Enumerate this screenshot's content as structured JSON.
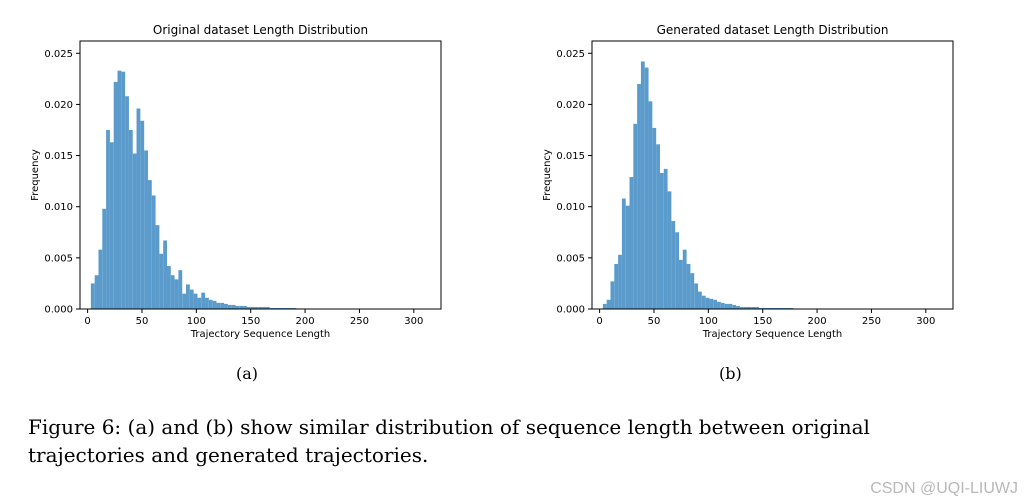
{
  "chart_data": [
    {
      "type": "bar",
      "title": "Original dataset Length Distribution",
      "xlabel": "Trajectory Sequence Length",
      "ylabel": "Frequency",
      "xlim": [
        -7,
        325
      ],
      "ylim": [
        0,
        0.0262
      ],
      "xticks": [
        "0",
        "50",
        "100",
        "150",
        "200",
        "250",
        "300"
      ],
      "yticks": [
        "0.000",
        "0.005",
        "0.010",
        "0.015",
        "0.020",
        "0.025"
      ],
      "bin_width": 3.5,
      "bin_start": 3,
      "values": [
        0.0025,
        0.0033,
        0.0058,
        0.0098,
        0.0175,
        0.0163,
        0.0222,
        0.0233,
        0.0232,
        0.0208,
        0.0175,
        0.0152,
        0.0196,
        0.0184,
        0.0155,
        0.0126,
        0.0111,
        0.0082,
        0.0054,
        0.0067,
        0.0042,
        0.0033,
        0.0029,
        0.0038,
        0.0015,
        0.0024,
        0.0019,
        0.0015,
        0.0011,
        0.0016,
        0.0011,
        0.0009,
        0.0008,
        0.0006,
        0.0006,
        0.0005,
        0.0004,
        0.0004,
        0.0003,
        0.0003,
        0.0003,
        0.0002,
        0.0002,
        0.0002,
        0.0002,
        0.0002,
        0.0002,
        0.0001,
        0.0001,
        0.0001,
        0.0001,
        0.0001,
        0.0001,
        0.0001
      ],
      "color": "#5b9bcc",
      "grid": false
    },
    {
      "type": "bar",
      "title": "Generated dataset Length Distribution",
      "xlabel": "Trajectory Sequence Length",
      "ylabel": "Frequency",
      "xlim": [
        -7,
        325
      ],
      "ylim": [
        0,
        0.0262
      ],
      "xticks": [
        "0",
        "50",
        "100",
        "150",
        "200",
        "250",
        "300"
      ],
      "yticks": [
        "0.000",
        "0.005",
        "0.010",
        "0.015",
        "0.020",
        "0.025"
      ],
      "bin_width": 3.5,
      "bin_start": 3,
      "values": [
        0.0005,
        0.0009,
        0.0027,
        0.0044,
        0.0053,
        0.0108,
        0.0101,
        0.0129,
        0.0181,
        0.022,
        0.0242,
        0.0236,
        0.0203,
        0.0177,
        0.0161,
        0.0133,
        0.0137,
        0.0115,
        0.0086,
        0.0075,
        0.0048,
        0.0058,
        0.0044,
        0.0035,
        0.0025,
        0.0017,
        0.0013,
        0.0011,
        0.001,
        0.0009,
        0.0007,
        0.0006,
        0.0005,
        0.0005,
        0.0004,
        0.0003,
        0.0002,
        0.0002,
        0.0002,
        0.0002,
        0.0002,
        0.0001,
        0.0001,
        0.0001,
        0.0001,
        0.0001,
        0.0001,
        0.0001,
        0.0001,
        0.0001
      ],
      "color": "#5b9bcc",
      "grid": false
    }
  ],
  "subcaptions": [
    "(a)",
    "(b)"
  ],
  "caption": "Figure 6: (a) and (b) show similar distribution of sequence length between original trajectories and generated trajectories.",
  "watermark": "CSDN @UQI-LIUWJ"
}
